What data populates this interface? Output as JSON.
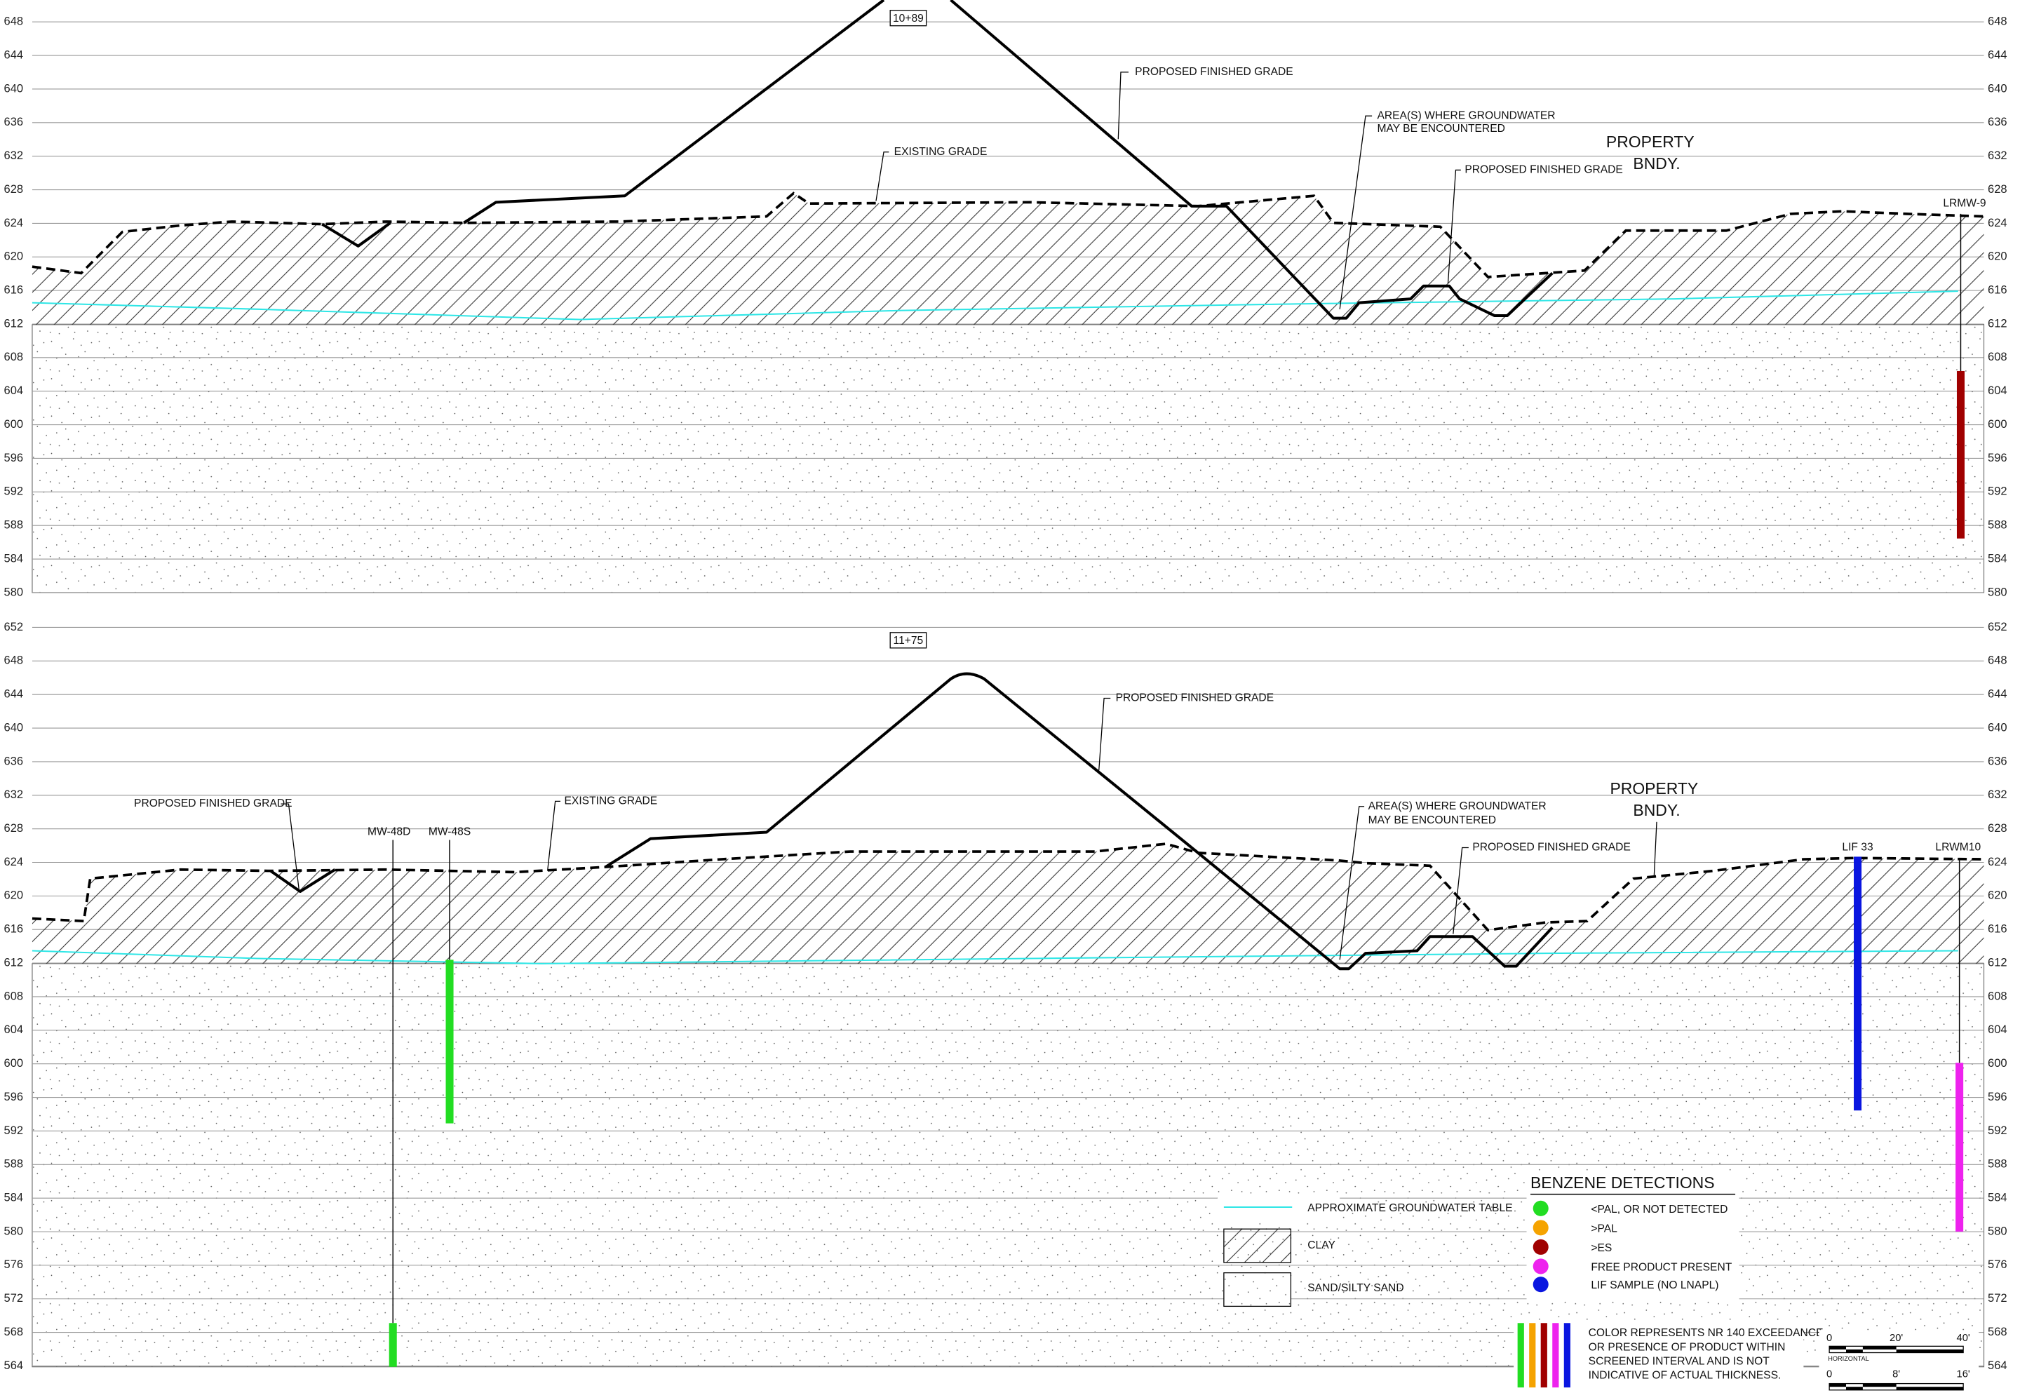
{
  "sections": [
    {
      "station": "10+89",
      "elevations": [
        648,
        644,
        640,
        636,
        632,
        628,
        624,
        620,
        616,
        612,
        608,
        604,
        600,
        596,
        592,
        588,
        584,
        580
      ],
      "annotations": [
        "PROPOSED FINISHED GRADE",
        "EXISTING GRADE",
        "AREA(S) WHERE GROUNDWATER",
        "MAY BE ENCOUNTERED",
        "PROPOSED FINISHED GRADE",
        "PROPERTY",
        "BNDY."
      ],
      "wells": [
        "LRMW-9"
      ]
    },
    {
      "station": "11+75",
      "elevations": [
        652,
        648,
        644,
        640,
        636,
        632,
        628,
        624,
        620,
        616,
        612,
        608,
        604,
        600,
        596,
        592,
        588,
        584,
        580,
        576,
        572,
        568,
        564
      ],
      "annotations": [
        "PROPOSED FINISHED GRADE",
        "PROPOSED FINISHED GRADE",
        "EXISTING GRADE",
        "AREA(S) WHERE GROUNDWATER",
        "MAY BE ENCOUNTERED",
        "PROPOSED FINISHED GRADE",
        "PROPERTY",
        "BNDY."
      ],
      "wells": [
        "MW-48D",
        "MW-48S",
        "LIF 33",
        "LRWM10"
      ]
    }
  ],
  "legend": {
    "groundwater": "APPROXIMATE GROUNDWATER TABLE",
    "clay": "CLAY",
    "sand": "SAND/SILTY SAND",
    "benzene_title": "BENZENE DETECTIONS",
    "benzene_items": [
      "<PAL, OR NOT DETECTED",
      ">PAL",
      ">ES",
      "FREE PRODUCT PRESENT",
      "LIF SAMPLE (NO LNAPL)"
    ],
    "note": [
      "COLOR REPRESENTS NR 140 EXCEEDANCE",
      "OR PRESENCE OF PRODUCT WITHIN",
      "SCREENED INTERVAL AND IS NOT",
      "INDICATIVE OF ACTUAL THICKNESS."
    ]
  },
  "scale": {
    "horizontal": [
      "0",
      "20'",
      "40'"
    ],
    "horizontal_label": "HORIZONTAL",
    "vertical": [
      "0",
      "8'",
      "16'"
    ]
  }
}
